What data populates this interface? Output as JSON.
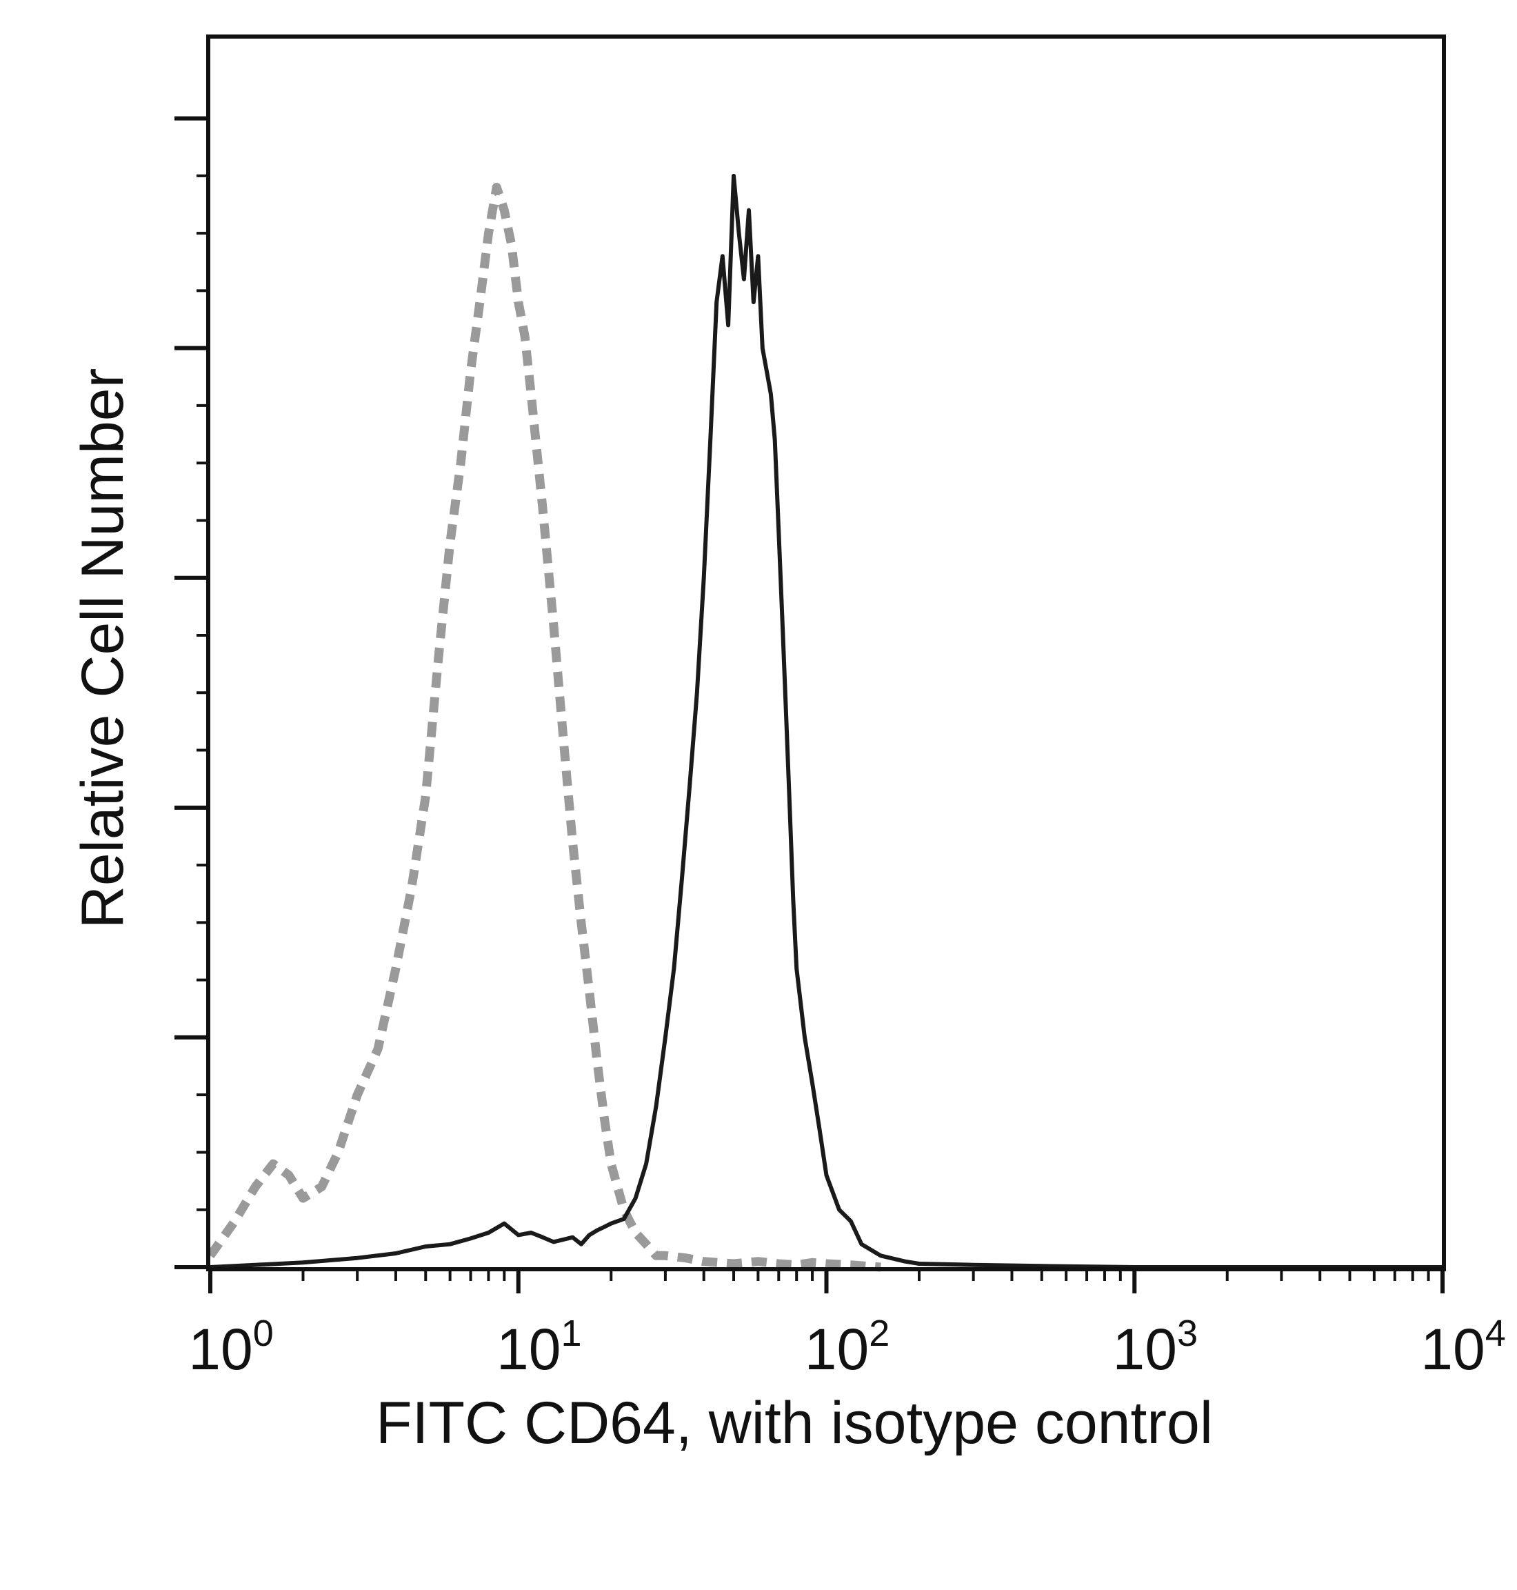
{
  "chart_data": {
    "type": "line",
    "title": "",
    "xlabel": "FITC CD64, with isotype control",
    "ylabel": "Relative Cell Number",
    "x_scale": "log",
    "xlim": [
      1,
      10000
    ],
    "ylim": [
      0,
      100
    ],
    "x_ticks": [
      {
        "base": "10",
        "exp": "0"
      },
      {
        "base": "10",
        "exp": "1"
      },
      {
        "base": "10",
        "exp": "2"
      },
      {
        "base": "10",
        "exp": "3"
      },
      {
        "base": "10",
        "exp": "4"
      }
    ],
    "y_tick_labels": "none",
    "grid": false,
    "legend": "none",
    "series": [
      {
        "style": "dashed",
        "color": "#9a9a9a",
        "x": [
          1,
          1.2,
          1.4,
          1.6,
          1.8,
          2,
          2.3,
          2.6,
          3,
          3.5,
          4,
          4.5,
          5,
          5.5,
          6,
          6.5,
          7,
          7.5,
          8,
          8.5,
          9,
          9.5,
          10,
          10.5,
          11,
          12,
          13,
          14,
          15,
          16,
          17,
          18,
          19,
          20,
          22,
          24,
          26,
          28,
          30,
          35,
          40,
          50,
          60,
          70,
          80,
          90,
          100,
          120,
          150
        ],
        "y": [
          1,
          4,
          7,
          9,
          8,
          6,
          7,
          10,
          15,
          19,
          26,
          33,
          41,
          53,
          63,
          70,
          78,
          84,
          90,
          94,
          92,
          89,
          84,
          81,
          76,
          66,
          56,
          46,
          37,
          30,
          24,
          18,
          13,
          9,
          5,
          3,
          2,
          1,
          1,
          0.8,
          0.5,
          0.3,
          0.5,
          0.3,
          0.2,
          0.4,
          0.3,
          0.2,
          0
        ]
      },
      {
        "style": "solid",
        "color": "#1a1a1a",
        "x": [
          1,
          2,
          3,
          4,
          5,
          6,
          7,
          8,
          9,
          10,
          11,
          12,
          13,
          14,
          15,
          16,
          17,
          18,
          19,
          20,
          22,
          24,
          26,
          28,
          30,
          32,
          34,
          36,
          38,
          40,
          42,
          44,
          46,
          48,
          50,
          52,
          54,
          56,
          58,
          60,
          62,
          64,
          66,
          68,
          70,
          72,
          74,
          76,
          78,
          80,
          85,
          90,
          95,
          100,
          110,
          120,
          130,
          150,
          180,
          200,
          300,
          500,
          1000,
          3000,
          10000
        ],
        "y": [
          0,
          0.4,
          0.8,
          1.2,
          1.8,
          2,
          2.5,
          3,
          3.8,
          2.8,
          3,
          2.6,
          2.2,
          2.4,
          2.6,
          2,
          2.8,
          3.2,
          3.5,
          3.8,
          4.2,
          6,
          9,
          14,
          20,
          26,
          34,
          42,
          50,
          60,
          72,
          84,
          88,
          82,
          95,
          90,
          86,
          92,
          84,
          88,
          80,
          78,
          76,
          72,
          64,
          56,
          48,
          40,
          32,
          26,
          20,
          16,
          12,
          8,
          5,
          4,
          2,
          1,
          0.5,
          0.3,
          0.2,
          0.1,
          0,
          0,
          0
        ]
      }
    ]
  }
}
